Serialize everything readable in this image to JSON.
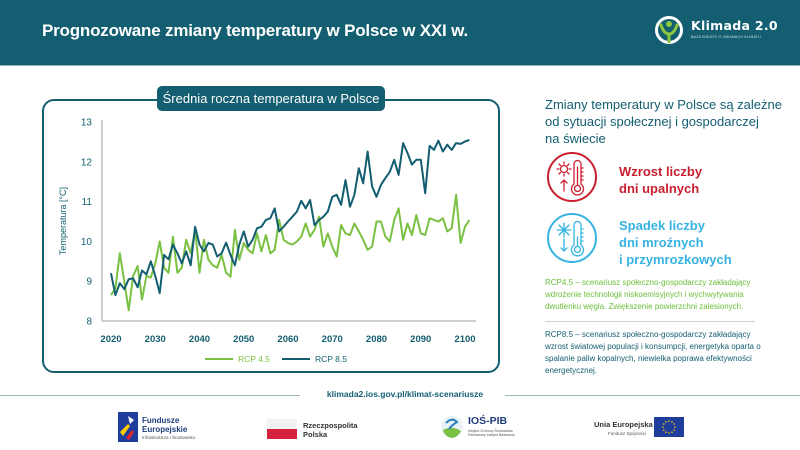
{
  "header": {
    "title": "Prognozowane zmiany temperatury w Polsce w XXI w.",
    "logo_name": "Klimada 2.0",
    "logo_subtitle": "BAZA WIEDZY O ZMIANACH KLIMATU",
    "background_color": "#135e70"
  },
  "chart_badge": "Średnia roczna temperatura w Polsce",
  "chart_data": {
    "type": "line",
    "title": "Średnia roczna temperatura w Polsce",
    "xlabel": "",
    "ylabel": "Temperatura [°C]",
    "xlim": [
      2020,
      2101
    ],
    "ylim": [
      8,
      13
    ],
    "x_ticks": [
      "2020",
      "2030",
      "2040",
      "2050",
      "2060",
      "2070",
      "2080",
      "2090",
      "2100"
    ],
    "y_ticks": [
      "8",
      "9",
      "10",
      "11",
      "12",
      "13"
    ],
    "grid": false,
    "legend_position": "bottom-center",
    "x_start": 2020,
    "series": [
      {
        "name": "RCP 4.5",
        "color": "#7ac143",
        "values": [
          8.65,
          8.82,
          9.7,
          8.99,
          8.27,
          9.13,
          9.38,
          8.54,
          9.13,
          9.09,
          9.45,
          10.0,
          9.34,
          9.21,
          10.12,
          9.21,
          9.34,
          10.04,
          9.7,
          10.29,
          9.21,
          10.04,
          9.54,
          9.4,
          9.34,
          9.66,
          9.21,
          9.11,
          10.29,
          9.54,
          9.96,
          9.79,
          9.7,
          10.2,
          9.75,
          10.16,
          9.7,
          9.79,
          10.54,
          10.04,
          9.96,
          9.92,
          10.0,
          10.12,
          10.45,
          10.12,
          10.29,
          10.62,
          9.87,
          10.2,
          9.87,
          9.62,
          10.41,
          10.2,
          10.16,
          10.45,
          10.25,
          10.04,
          9.79,
          9.87,
          10.5,
          10.5,
          10.12,
          10.0,
          10.54,
          10.83,
          10.04,
          10.45,
          10.16,
          10.66,
          10.2,
          10.16,
          10.58,
          10.54,
          10.5,
          10.58,
          10.25,
          10.33,
          11.17,
          9.96,
          10.37,
          10.54
        ]
      },
      {
        "name": "RCP 8.5",
        "color": "#135e70",
        "values": [
          9.2,
          8.65,
          8.95,
          8.8,
          9.05,
          9.07,
          8.85,
          9.27,
          9.17,
          9.5,
          9.13,
          8.7,
          9.66,
          9.55,
          9.92,
          9.7,
          9.45,
          9.75,
          9.4,
          10.37,
          9.92,
          9.75,
          9.96,
          9.92,
          9.62,
          9.7,
          9.97,
          9.66,
          9.4,
          9.92,
          10.25,
          9.87,
          10.04,
          10.33,
          10.37,
          10.54,
          10.58,
          10.83,
          10.25,
          10.37,
          10.5,
          10.62,
          10.75,
          11.02,
          10.83,
          11.04,
          10.41,
          10.54,
          10.62,
          10.75,
          11.12,
          11.17,
          10.92,
          11.54,
          10.87,
          11.17,
          11.84,
          11.46,
          12.26,
          11.38,
          11.12,
          11.42,
          11.59,
          11.75,
          12.05,
          11.67,
          12.47,
          12.22,
          11.93,
          12.05,
          12.05,
          11.21,
          12.4,
          12.3,
          12.53,
          12.26,
          12.43,
          12.3,
          12.47,
          12.45,
          12.51,
          12.55
        ]
      }
    ]
  },
  "right_panel": {
    "title": "Zmiany temperatury w Polsce są zależne od sytuacji społecznej i gospodarczej na świecie",
    "title_lines": [
      "Zmiany temperatury w Polsce są zależne",
      "od sytuacji społecznej i gospodarczej",
      "na świecie"
    ],
    "hot_icon": "thermometer-sun-up-icon",
    "hot_lines": [
      "Wzrost liczby",
      "dni upalnych"
    ],
    "hot_color": "#c8202f",
    "cold_icon": "thermometer-snowflake-down-icon",
    "cold_lines": [
      "Spadek liczby",
      "dni mroźnych",
      "i przymrozkowych"
    ],
    "cold_color": "#36b3e3",
    "rcp45_description": "RCP4.5 – scenariusz społeczno-gospodarczy zakładający wdrożenie technologii niskoemisyjnych i wychwytywania dwutlenku węgla. Zwiększenie powierzchni zalesionych.",
    "rcp85_description": "RCP8.5 – scenariusz społeczno-gospodarczy zakładający wzrost światowej populacji i konsumpcji, energetyka oparta o spalanie paliw kopalnych, niewielka poprawa efektywności energetycznej."
  },
  "url": "klimada2.ios.gov.pl/klimat-scenariusze",
  "footer": {
    "fe_name_lines": [
      "Fundusze",
      "Europejskie"
    ],
    "fe_sub": "Infrastruktura i Środowisko",
    "rp_lines": [
      "Rzeczpospolita",
      "Polska"
    ],
    "ios_name": "IOŚ-PIB",
    "ios_sub": "Instytut Ochrony Środowiska Państwowy Instytut Badawczy",
    "ue_name": "Unia Europejska",
    "ue_sub": "Fundusz Spójności"
  }
}
